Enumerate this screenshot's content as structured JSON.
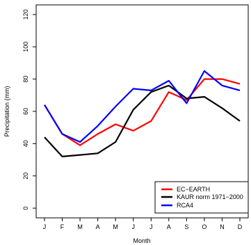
{
  "chart_data": {
    "type": "line",
    "title": "",
    "xlabel": "Month",
    "ylabel": "Precipitation (mm)",
    "categories": [
      "J",
      "F",
      "M",
      "A",
      "M",
      "J",
      "J",
      "A",
      "S",
      "O",
      "N",
      "D"
    ],
    "ylim": [
      -6,
      126
    ],
    "yticks": [
      0,
      20,
      40,
      60,
      80,
      100,
      120
    ],
    "grid": false,
    "legend_position": "bottom-right",
    "series": [
      {
        "name": "EC−EARTH",
        "color": "#ff0000",
        "values": [
          64,
          46,
          39,
          46,
          52,
          48,
          54,
          72,
          67,
          80,
          80,
          77
        ]
      },
      {
        "name": "KAUR norm 1971−2000",
        "color": "#000000",
        "values": [
          44,
          32,
          33,
          34,
          41,
          61,
          72,
          76,
          68,
          69,
          62,
          54
        ]
      },
      {
        "name": "RCA4",
        "color": "#0000ff",
        "values": [
          64,
          46,
          41,
          51,
          63,
          74,
          73,
          79,
          65,
          85,
          76,
          73
        ]
      }
    ]
  }
}
